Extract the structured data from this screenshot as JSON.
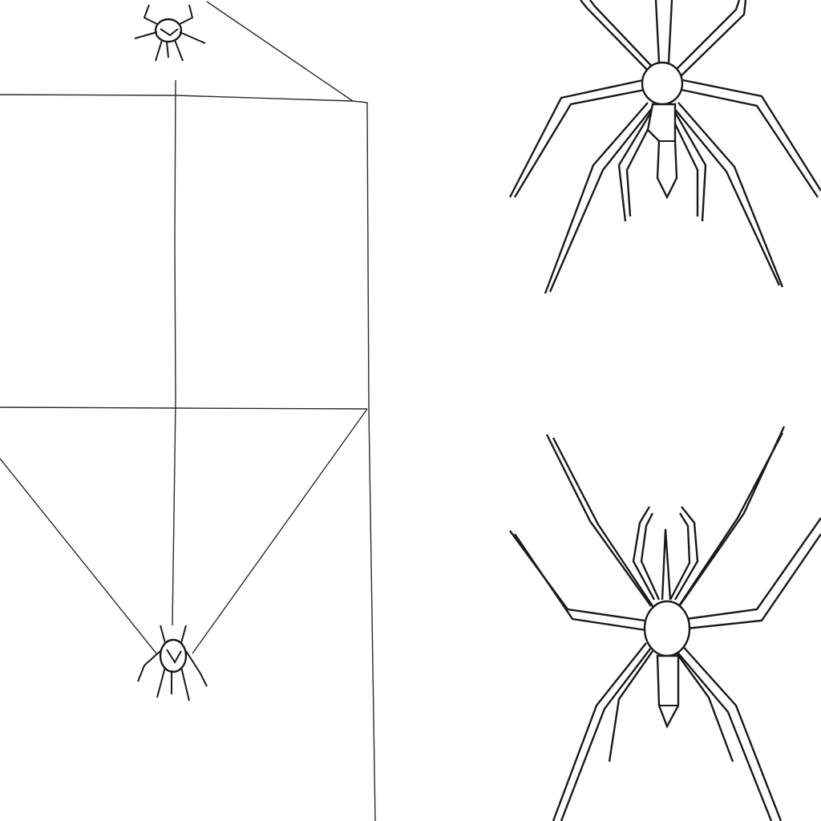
{
  "image": {
    "subject": "pencil-sketch",
    "background_color": "#ffffff",
    "ink_color": "#1e1e1e"
  }
}
